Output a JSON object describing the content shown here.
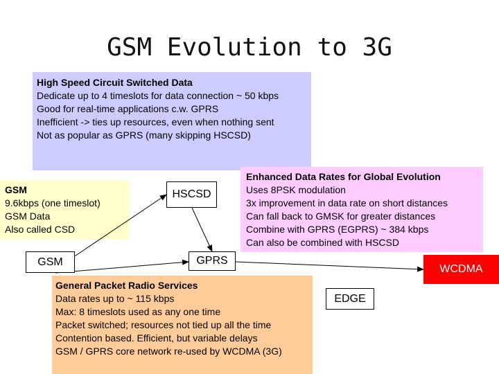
{
  "title": "GSM Evolution to 3G",
  "hscsd_box": {
    "heading": "High Speed Circuit Switched Data",
    "lines": [
      "Dedicate up to 4 timeslots for data connection ~ 50 kbps",
      "Good for real-time applications c.w. GPRS",
      "Inefficient -> ties up resources, even when nothing sent",
      "Not as popular as GPRS (many skipping HSCSD)"
    ]
  },
  "gsm_box": {
    "heading": "GSM",
    "lines": [
      "9.6kbps (one timeslot)",
      "GSM Data",
      "Also called CSD"
    ]
  },
  "edge_box": {
    "heading": "Enhanced Data Rates for Global Evolution",
    "lines": [
      "Uses 8PSK modulation",
      "3x improvement in data rate on short distances",
      "Can fall back to GMSK for greater distances",
      "Combine with GPRS (EGPRS) ~ 384 kbps",
      "Can also be combined with HSCSD"
    ]
  },
  "gprs_box": {
    "heading": "General Packet Radio Services",
    "lines": [
      "Data rates up to ~ 115 kbps",
      "Max: 8 timeslots used as any one time",
      "Packet switched; resources not tied up all the time",
      "Contention based.  Efficient, but variable delays",
      "GSM / GPRS core network re-used by WCDMA (3G)"
    ]
  },
  "nodes": {
    "hscsd": "HSCSD",
    "gsm": "GSM",
    "gprs": "GPRS",
    "wcdma": "WCDMA",
    "edge": "EDGE"
  },
  "colors": {
    "hscsd_box": "#ccccff",
    "gsm_box": "#ffffcc",
    "edge_box": "#ffccff",
    "gprs_box": "#ffcc99",
    "wcdma_node": "#ff0000"
  }
}
